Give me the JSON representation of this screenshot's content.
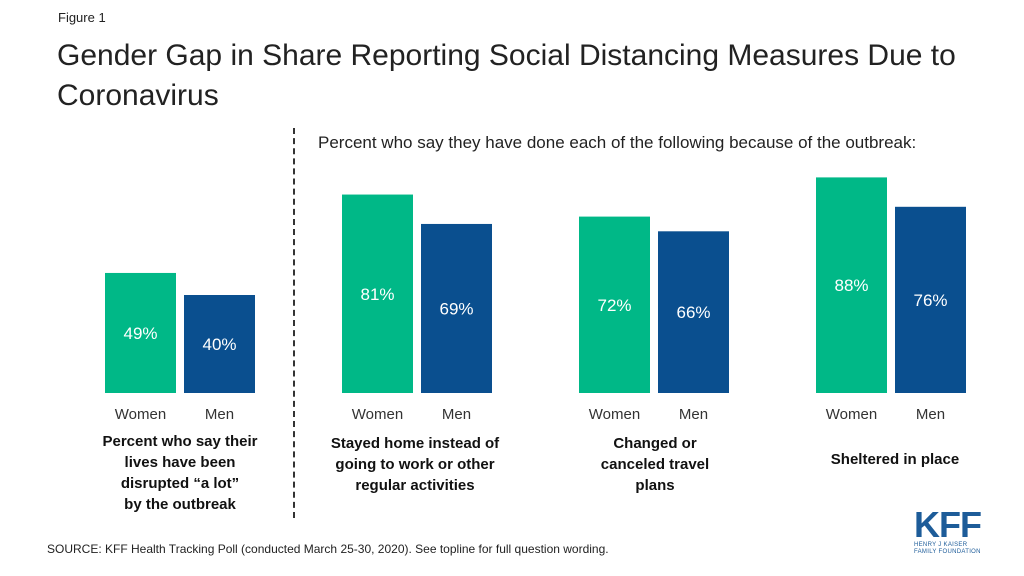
{
  "figure_label": "Figure 1",
  "title": "Gender Gap in Share Reporting Social Distancing Measures Due to Coronavirus",
  "subtitle": "Percent who say they have done each of the following because of the outbreak:",
  "source": "SOURCE: KFF Health Tracking Poll (conducted March 25-30, 2020). See topline for full question wording.",
  "logo": {
    "name": "KFF",
    "line1": "Henry J Kaiser",
    "line2": "Family Foundation"
  },
  "colors": {
    "women": "#00b887",
    "men": "#0a4f8f"
  },
  "chart_data": {
    "type": "bar",
    "ylim": [
      0,
      100
    ],
    "grid": false,
    "groups": [
      {
        "caption": "Percent who say their lives have been disrupted “a lot” by the outbreak",
        "caption_lines": [
          "Percent who say their",
          "lives have been",
          "disrupted “a lot”",
          "by the outbreak"
        ],
        "categories": [
          "Women",
          "Men"
        ],
        "values": [
          49,
          40
        ],
        "labels": [
          "49%",
          "40%"
        ]
      },
      {
        "caption": "Stayed home instead of going to work or other regular activities",
        "caption_lines": [
          "Stayed home instead of",
          "going to work or other",
          "regular activities"
        ],
        "categories": [
          "Women",
          "Men"
        ],
        "values": [
          81,
          69
        ],
        "labels": [
          "81%",
          "69%"
        ]
      },
      {
        "caption": "Changed or canceled travel plans",
        "caption_lines": [
          "Changed or",
          "canceled travel",
          "plans"
        ],
        "categories": [
          "Women",
          "Men"
        ],
        "values": [
          72,
          66
        ],
        "labels": [
          "72%",
          "66%"
        ]
      },
      {
        "caption": "Sheltered in place",
        "caption_lines": [
          "Sheltered in place"
        ],
        "categories": [
          "Women",
          "Men"
        ],
        "values": [
          88,
          76
        ],
        "labels": [
          "88%",
          "76%"
        ]
      }
    ]
  }
}
